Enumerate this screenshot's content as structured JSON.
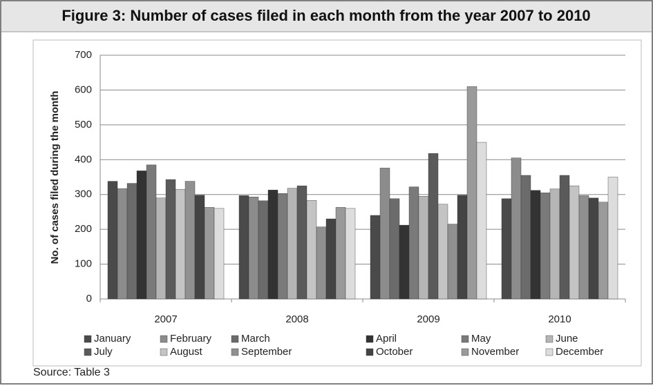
{
  "chart_data": {
    "type": "bar",
    "title": "Figure 3: Number of cases filed in each month from the year 2007 to 2010",
    "ylabel": "No. of cases filed during the month",
    "source": "Source: Table 3",
    "categories": [
      "2007",
      "2008",
      "2009",
      "2010"
    ],
    "ylim": [
      0,
      700
    ],
    "yticks": [
      0,
      100,
      200,
      300,
      400,
      500,
      600,
      700
    ],
    "grid": true,
    "legend": "bottom",
    "series": [
      {
        "name": "January",
        "color": "#4a4a4a",
        "values": [
          338,
          297,
          240,
          288
        ]
      },
      {
        "name": "February",
        "color": "#8c8c8c",
        "values": [
          317,
          293,
          376,
          405
        ]
      },
      {
        "name": "March",
        "color": "#6b6b6b",
        "values": [
          332,
          282,
          288,
          355
        ]
      },
      {
        "name": "April",
        "color": "#333333",
        "values": [
          368,
          313,
          212,
          312
        ]
      },
      {
        "name": "May",
        "color": "#7a7a7a",
        "values": [
          385,
          303,
          322,
          305
        ]
      },
      {
        "name": "June",
        "color": "#b5b5b5",
        "values": [
          290,
          318,
          295,
          316
        ]
      },
      {
        "name": "July",
        "color": "#5a5a5a",
        "values": [
          343,
          325,
          418,
          355
        ]
      },
      {
        "name": "August",
        "color": "#c4c4c4",
        "values": [
          315,
          283,
          272,
          325
        ]
      },
      {
        "name": "September",
        "color": "#909090",
        "values": [
          338,
          207,
          215,
          297
        ]
      },
      {
        "name": "October",
        "color": "#444444",
        "values": [
          298,
          230,
          298,
          290
        ]
      },
      {
        "name": "November",
        "color": "#9a9a9a",
        "values": [
          263,
          263,
          610,
          278
        ]
      },
      {
        "name": "December",
        "color": "#dddddd",
        "values": [
          260,
          260,
          450,
          350
        ]
      }
    ]
  }
}
